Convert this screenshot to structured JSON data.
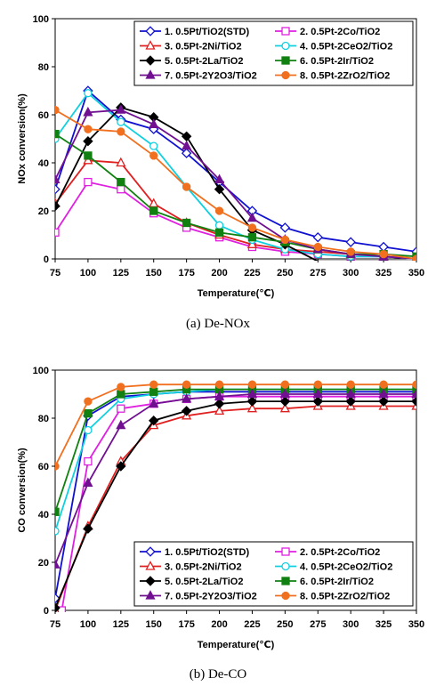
{
  "chart_data": [
    {
      "id": "denox",
      "type": "line",
      "caption": "(a)  De-NOx",
      "xlabel": "Temperature(℃)",
      "ylabel": "NOx conversion(%)",
      "xlim": [
        75,
        350
      ],
      "ylim": [
        0,
        100
      ],
      "xticks": [
        75,
        100,
        125,
        150,
        175,
        200,
        225,
        250,
        275,
        300,
        325,
        350
      ],
      "yticks": [
        0,
        20,
        40,
        60,
        80,
        100
      ],
      "legend_position": "top",
      "series": [
        {
          "name": "1. 0.5Pt/TiO2(STD)",
          "color": "#1010d0",
          "marker": "diamond-open",
          "x": [
            75,
            100,
            125,
            150,
            175,
            200,
            225,
            250,
            275,
            300,
            325,
            350
          ],
          "y": [
            29,
            70,
            58,
            54,
            44,
            32,
            20,
            13,
            9,
            7,
            5,
            3
          ]
        },
        {
          "name": "2. 0.5Pt-2Co/TiO2",
          "color": "#e020e0",
          "marker": "square-open",
          "x": [
            75,
            100,
            125,
            150,
            175,
            200,
            225,
            250,
            275,
            300,
            325,
            350
          ],
          "y": [
            11,
            32,
            29,
            19,
            13,
            9,
            5,
            3,
            2,
            1,
            1,
            0
          ]
        },
        {
          "name": "3. 0.5Pt-2Ni/TiO2",
          "color": "#e02020",
          "marker": "triangle-open",
          "x": [
            75,
            100,
            125,
            150,
            175,
            200,
            225,
            250,
            275,
            300,
            325,
            350
          ],
          "y": [
            23,
            41,
            40,
            23,
            15,
            10,
            6,
            4,
            3,
            2,
            1,
            0
          ]
        },
        {
          "name": "4. 0.5Pt-2CeO2/TiO2",
          "color": "#10d0e0",
          "marker": "circle-open",
          "x": [
            75,
            100,
            125,
            150,
            175,
            200,
            225,
            250,
            275,
            300,
            325,
            350
          ],
          "y": [
            50,
            69,
            57,
            47,
            30,
            14,
            8,
            4,
            2,
            1,
            1,
            0
          ]
        },
        {
          "name": "5. 0.5Pt-2La/TiO2",
          "color": "#000000",
          "marker": "diamond",
          "x": [
            75,
            100,
            125,
            150,
            175,
            200,
            225,
            250,
            275,
            300,
            325,
            350
          ],
          "y": [
            22,
            49,
            63,
            59,
            51,
            29,
            12,
            6,
            -1,
            -1,
            -1,
            -1
          ]
        },
        {
          "name": "6. 0.5Pt-2Ir/TiO2",
          "color": "#108010",
          "marker": "square",
          "x": [
            75,
            100,
            125,
            150,
            175,
            200,
            225,
            250,
            275,
            300,
            325,
            350
          ],
          "y": [
            52,
            43,
            32,
            20,
            15,
            11,
            9,
            7,
            4,
            2,
            2,
            1
          ]
        },
        {
          "name": "7. 0.5Pt-2Y2O3/TiO2",
          "color": "#701090",
          "marker": "triangle",
          "x": [
            75,
            100,
            125,
            150,
            175,
            200,
            225,
            250,
            275,
            300,
            325,
            350
          ],
          "y": [
            33,
            61,
            62,
            56,
            47,
            33,
            17,
            8,
            4,
            2,
            1,
            0
          ]
        },
        {
          "name": "8. 0.5Pt-2ZrO2/TiO2",
          "color": "#f07020",
          "marker": "circle",
          "x": [
            75,
            100,
            125,
            150,
            175,
            200,
            225,
            250,
            275,
            300,
            325,
            350
          ],
          "y": [
            62,
            54,
            53,
            43,
            30,
            20,
            13,
            8,
            5,
            3,
            2,
            0
          ]
        }
      ]
    },
    {
      "id": "deco",
      "type": "line",
      "caption": "(b)  De-CO",
      "xlabel": "Temperature(℃)",
      "ylabel": "CO conversion(%)",
      "xlim": [
        75,
        350
      ],
      "ylim": [
        0,
        100
      ],
      "xticks": [
        75,
        100,
        125,
        150,
        175,
        200,
        225,
        250,
        275,
        300,
        325,
        350
      ],
      "yticks": [
        0,
        20,
        40,
        60,
        80,
        100
      ],
      "legend_position": "bottom",
      "series": [
        {
          "name": "1. 0.5Pt/TiO2(STD)",
          "color": "#1010d0",
          "marker": "diamond-open",
          "x": [
            75,
            100,
            125,
            150,
            175,
            200,
            225,
            250,
            275,
            300,
            325,
            350
          ],
          "y": [
            5,
            81,
            89,
            90,
            91,
            91,
            91,
            91,
            91,
            91,
            91,
            91
          ]
        },
        {
          "name": "2. 0.5Pt-2Co/TiO2",
          "color": "#e020e0",
          "marker": "square-open",
          "x": [
            75,
            80,
            100,
            125,
            150,
            175,
            200,
            225,
            250,
            275,
            300,
            325,
            350
          ],
          "y": [
            -2,
            0,
            62,
            84,
            86,
            88,
            89,
            89,
            89,
            89,
            89,
            89,
            89
          ]
        },
        {
          "name": "3. 0.5Pt-2Ni/TiO2",
          "color": "#e02020",
          "marker": "triangle-open",
          "x": [
            75,
            100,
            125,
            150,
            175,
            200,
            225,
            250,
            275,
            300,
            325,
            350
          ],
          "y": [
            0,
            35,
            62,
            77,
            81,
            83,
            84,
            84,
            85,
            85,
            85,
            85
          ]
        },
        {
          "name": "4. 0.5Pt-2CeO2/TiO2",
          "color": "#10d0e0",
          "marker": "circle-open",
          "x": [
            75,
            100,
            125,
            150,
            175,
            200,
            225,
            250,
            275,
            300,
            325,
            350
          ],
          "y": [
            33,
            75,
            88,
            90,
            91,
            92,
            92,
            92,
            92,
            92,
            92,
            92
          ]
        },
        {
          "name": "5. 0.5Pt-2La/TiO2",
          "color": "#000000",
          "marker": "diamond",
          "x": [
            75,
            100,
            125,
            150,
            175,
            200,
            225,
            250,
            275,
            300,
            325,
            350
          ],
          "y": [
            1,
            34,
            60,
            79,
            83,
            86,
            87,
            87,
            87,
            87,
            87,
            87
          ]
        },
        {
          "name": "6. 0.5Pt-2Ir/TiO2",
          "color": "#108010",
          "marker": "square",
          "x": [
            75,
            100,
            125,
            150,
            175,
            200,
            225,
            250,
            275,
            300,
            325,
            350
          ],
          "y": [
            41,
            82,
            90,
            91,
            92,
            92,
            92,
            92,
            92,
            92,
            92,
            92
          ]
        },
        {
          "name": "7. 0.5Pt-2Y2O3/TiO2",
          "color": "#701090",
          "marker": "triangle",
          "x": [
            75,
            100,
            125,
            150,
            175,
            200,
            225,
            250,
            275,
            300,
            325,
            350
          ],
          "y": [
            19,
            53,
            77,
            86,
            88,
            89,
            90,
            90,
            90,
            90,
            90,
            90
          ]
        },
        {
          "name": "8. 0.5Pt-2ZrO2/TiO2",
          "color": "#f07020",
          "marker": "circle",
          "x": [
            75,
            100,
            125,
            150,
            175,
            200,
            225,
            250,
            275,
            300,
            325,
            350
          ],
          "y": [
            60,
            87,
            93,
            94,
            94,
            94,
            94,
            94,
            94,
            94,
            94,
            94
          ]
        }
      ]
    }
  ]
}
